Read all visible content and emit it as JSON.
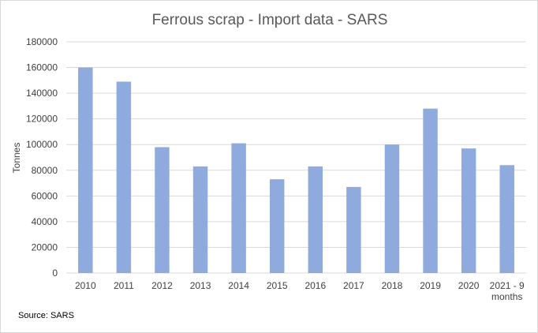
{
  "chart_data": {
    "type": "bar",
    "title": "Ferrous scrap - Import data - SARS",
    "ylabel": "Tonnes",
    "xlabel": "",
    "categories": [
      "2010",
      "2011",
      "2012",
      "2013",
      "2014",
      "2015",
      "2016",
      "2017",
      "2018",
      "2019",
      "2020",
      "2021 - 9 months"
    ],
    "category_label_lines": [
      [
        "2010"
      ],
      [
        "2011"
      ],
      [
        "2012"
      ],
      [
        "2013"
      ],
      [
        "2014"
      ],
      [
        "2015"
      ],
      [
        "2016"
      ],
      [
        "2017"
      ],
      [
        "2018"
      ],
      [
        "2019"
      ],
      [
        "2020"
      ],
      [
        "2021 - 9",
        "months"
      ]
    ],
    "values": [
      160000,
      149000,
      98000,
      83000,
      101000,
      73000,
      83000,
      67000,
      100000,
      128000,
      97000,
      84000
    ],
    "ylim": [
      0,
      180000
    ],
    "yticks": [
      "0",
      "20000",
      "40000",
      "60000",
      "80000",
      "100000",
      "120000",
      "140000",
      "160000",
      "180000"
    ],
    "grid": true,
    "bar_color": "#8faadc",
    "grid_color": "#d9d9d9"
  },
  "source_note": "Source: SARS"
}
